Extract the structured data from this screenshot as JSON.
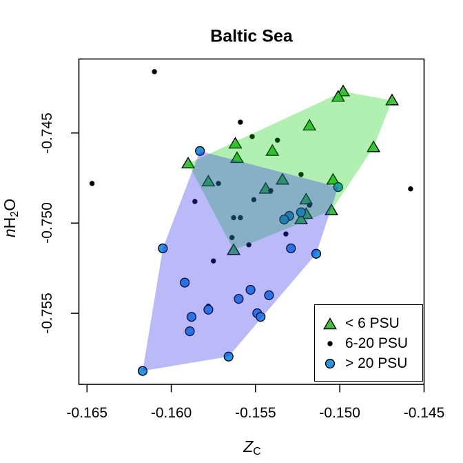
{
  "title": "Baltic Sea",
  "axes": {
    "x": {
      "label_main": "Z",
      "label_sub": "C",
      "ticks": [
        -0.165,
        -0.16,
        -0.155,
        -0.15,
        -0.145
      ],
      "tick_labels": [
        "-0.165",
        "-0.160",
        "-0.155",
        "-0.150",
        "-0.145"
      ],
      "range": [
        -0.1655,
        -0.1449
      ]
    },
    "y": {
      "label_italic": "n",
      "label_main": "H",
      "label_sub": "2",
      "label_end": "O",
      "ticks": [
        -0.745,
        -0.75,
        -0.755
      ],
      "tick_labels": [
        "-0.745",
        "-0.750",
        "-0.755"
      ],
      "range": [
        -0.759,
        -0.7409
      ]
    }
  },
  "legend": {
    "items": [
      {
        "label": "< 6 PSU",
        "marker": "triangle",
        "color": "#44c144"
      },
      {
        "label": "6-20 PSU",
        "marker": "dot",
        "color": "#000000"
      },
      {
        "label": "> 20 PSU",
        "marker": "circle",
        "color": "#2b94e0"
      }
    ]
  },
  "chart_data": {
    "type": "scatter",
    "title": "Baltic Sea",
    "xlabel": "Z_C",
    "ylabel": "nH2O",
    "xlim": [
      -0.1655,
      -0.1449
    ],
    "ylim": [
      -0.759,
      -0.7409
    ],
    "grid": false,
    "legend_position": "bottom-right",
    "series": [
      {
        "name": "< 6 PSU",
        "marker": "triangle",
        "color": "#44c144",
        "points": [
          [
            -0.1498,
            -0.7427
          ],
          [
            -0.1501,
            -0.743
          ],
          [
            -0.1469,
            -0.7432
          ],
          [
            -0.1518,
            -0.7446
          ],
          [
            -0.154,
            -0.746
          ],
          [
            -0.148,
            -0.7458
          ],
          [
            -0.1562,
            -0.7456
          ],
          [
            -0.1561,
            -0.7464
          ],
          [
            -0.159,
            -0.7467
          ],
          [
            -0.1578,
            -0.7477
          ],
          [
            -0.1544,
            -0.7481
          ],
          [
            -0.1534,
            -0.7476
          ],
          [
            -0.1504,
            -0.7476
          ],
          [
            -0.152,
            -0.7487
          ],
          [
            -0.152,
            -0.7495
          ],
          [
            -0.1505,
            -0.7493
          ],
          [
            -0.1523,
            -0.7498
          ],
          [
            -0.1563,
            -0.7515
          ]
        ]
      },
      {
        "name": "6-20 PSU",
        "marker": "dot",
        "color": "#000000",
        "points": [
          [
            -0.161,
            -0.7416
          ],
          [
            -0.1559,
            -0.7444
          ],
          [
            -0.1552,
            -0.7452
          ],
          [
            -0.1647,
            -0.7478
          ],
          [
            -0.1458,
            -0.7481
          ],
          [
            -0.1537,
            -0.7454
          ],
          [
            -0.1572,
            -0.7478
          ],
          [
            -0.1523,
            -0.7473
          ],
          [
            -0.1541,
            -0.7482
          ],
          [
            -0.1551,
            -0.7487
          ],
          [
            -0.1586,
            -0.7488
          ],
          [
            -0.1563,
            -0.7497
          ],
          [
            -0.1559,
            -0.7497
          ],
          [
            -0.1518,
            -0.749
          ],
          [
            -0.1532,
            -0.7506
          ],
          [
            -0.1564,
            -0.7508
          ],
          [
            -0.1554,
            -0.7512
          ],
          [
            -0.1575,
            -0.7521
          ],
          [
            -0.1578,
            -0.7546
          ]
        ]
      },
      {
        "name": "> 20 PSU",
        "marker": "circle",
        "color": "#2b94e0",
        "points": [
          [
            -0.1583,
            -0.746
          ],
          [
            -0.1501,
            -0.748
          ],
          [
            -0.1523,
            -0.7494
          ],
          [
            -0.153,
            -0.7496
          ],
          [
            -0.1533,
            -0.7498
          ],
          [
            -0.1605,
            -0.7514
          ],
          [
            -0.1529,
            -0.7514
          ],
          [
            -0.1514,
            -0.7517
          ],
          [
            -0.1542,
            -0.754
          ],
          [
            -0.1592,
            -0.7533
          ],
          [
            -0.1553,
            -0.7537
          ],
          [
            -0.156,
            -0.7542
          ],
          [
            -0.1578,
            -0.7548
          ],
          [
            -0.1588,
            -0.7552
          ],
          [
            -0.1589,
            -0.756
          ],
          [
            -0.1549,
            -0.755
          ],
          [
            -0.1547,
            -0.7552
          ],
          [
            -0.1566,
            -0.7574
          ],
          [
            -0.1617,
            -0.7582
          ]
        ]
      }
    ],
    "hulls": [
      {
        "name": "green-hull-polygon",
        "series": "< 6 PSU",
        "fill": "rgba(0,205,0,0.30)",
        "points": [
          [
            -0.159,
            -0.7467
          ],
          [
            -0.1498,
            -0.7427
          ],
          [
            -0.1469,
            -0.7432
          ],
          [
            -0.148,
            -0.7458
          ],
          [
            -0.1505,
            -0.7493
          ],
          [
            -0.1563,
            -0.7515
          ]
        ]
      },
      {
        "name": "blue-hull-polygon",
        "series": "> 20 PSU",
        "fill": "rgba(50,45,235,0.33)",
        "points": [
          [
            -0.1583,
            -0.746
          ],
          [
            -0.1501,
            -0.748
          ],
          [
            -0.1514,
            -0.7517
          ],
          [
            -0.1566,
            -0.7574
          ],
          [
            -0.1617,
            -0.7582
          ],
          [
            -0.1605,
            -0.7514
          ]
        ]
      }
    ]
  }
}
